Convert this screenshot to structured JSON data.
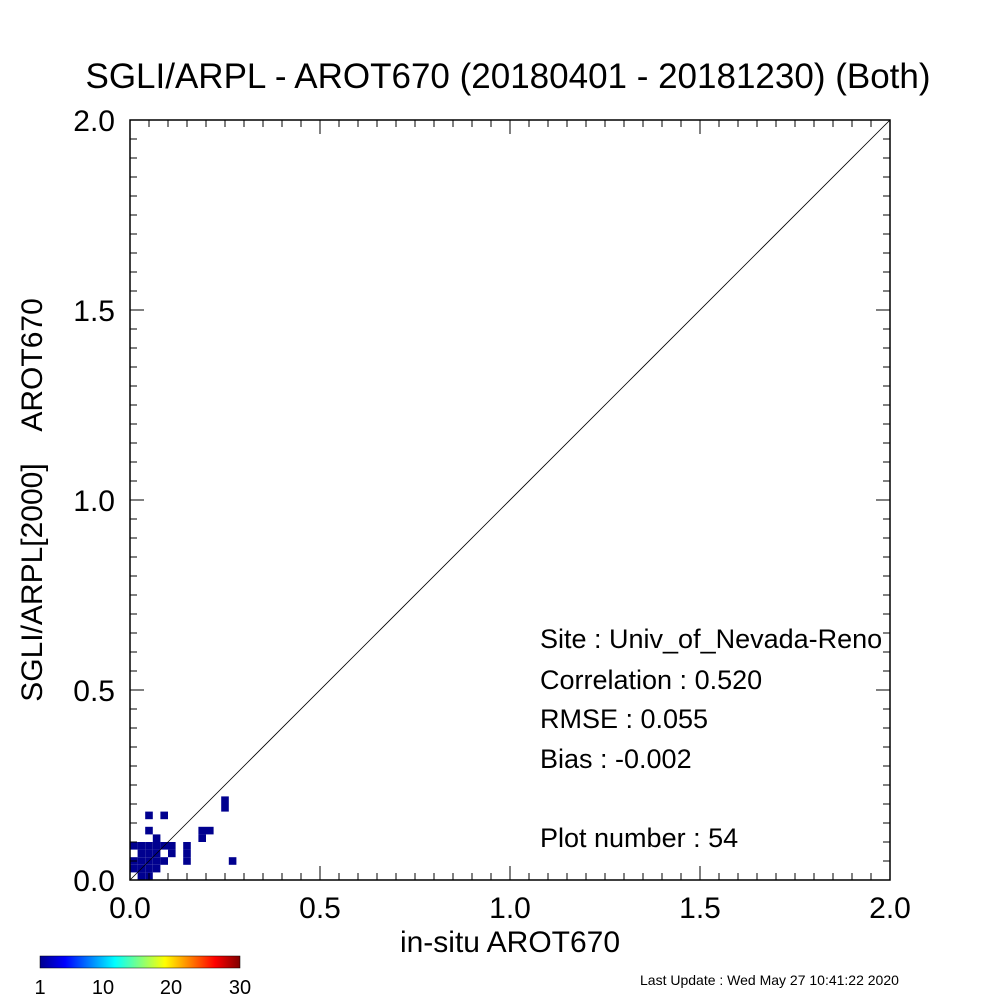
{
  "chart_data": {
    "type": "heatmap",
    "title": "SGLI/ARPL - AROT670 (20180401 - 20181230) (Both)",
    "xlabel": "in-situ AROT670",
    "ylabel": "SGLI/ARPL[2000]    AROT670",
    "xlim": [
      0.0,
      2.0
    ],
    "ylim": [
      0.0,
      2.0
    ],
    "x_ticks": [
      "0.0",
      "0.5",
      "1.0",
      "1.5",
      "2.0"
    ],
    "y_ticks": [
      "0.0",
      "0.5",
      "1.0",
      "1.5",
      "2.0"
    ],
    "bin_size": 0.02,
    "one_to_one_line": true,
    "grid": false,
    "cells": [
      [
        0.0,
        0.02,
        1
      ],
      [
        0.0,
        0.04,
        1
      ],
      [
        0.0,
        0.08,
        1
      ],
      [
        0.02,
        0.0,
        1
      ],
      [
        0.02,
        0.02,
        1
      ],
      [
        0.02,
        0.04,
        1
      ],
      [
        0.02,
        0.06,
        1
      ],
      [
        0.02,
        0.08,
        1
      ],
      [
        0.04,
        0.0,
        1
      ],
      [
        0.04,
        0.02,
        1
      ],
      [
        0.04,
        0.04,
        1
      ],
      [
        0.04,
        0.06,
        1
      ],
      [
        0.04,
        0.08,
        1
      ],
      [
        0.04,
        0.12,
        1
      ],
      [
        0.04,
        0.16,
        1
      ],
      [
        0.06,
        0.02,
        1
      ],
      [
        0.06,
        0.04,
        1
      ],
      [
        0.06,
        0.06,
        1
      ],
      [
        0.06,
        0.08,
        1
      ],
      [
        0.06,
        0.1,
        1
      ],
      [
        0.08,
        0.04,
        1
      ],
      [
        0.08,
        0.08,
        1
      ],
      [
        0.08,
        0.16,
        1
      ],
      [
        0.1,
        0.06,
        1
      ],
      [
        0.1,
        0.08,
        1
      ],
      [
        0.14,
        0.04,
        1
      ],
      [
        0.14,
        0.06,
        1
      ],
      [
        0.14,
        0.08,
        1
      ],
      [
        0.18,
        0.1,
        1
      ],
      [
        0.18,
        0.12,
        1
      ],
      [
        0.2,
        0.12,
        1
      ],
      [
        0.24,
        0.18,
        1
      ],
      [
        0.24,
        0.2,
        1
      ],
      [
        0.26,
        0.04,
        1
      ]
    ],
    "colorbar": {
      "min": 1,
      "max": 30,
      "tick_labels": [
        "1",
        "10",
        "20",
        "30"
      ],
      "colormap": "jet",
      "low_color": "#00008f",
      "high_color": "#800000"
    },
    "annotations": [
      "Site : Univ_of_Nevada-Reno",
      "Correlation :    0.520",
      "RMSE :    0.055",
      "Bias :   -0.002",
      "Plot number :        54"
    ]
  },
  "footer": {
    "last_update": "Last Update : Wed May 27 10:41:22 2020"
  }
}
